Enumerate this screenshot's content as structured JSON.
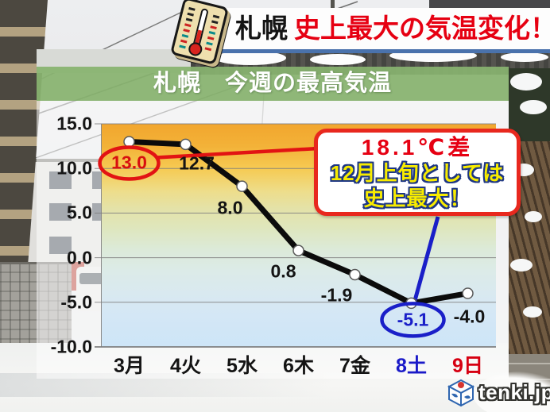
{
  "header": {
    "location": "札幌",
    "headline": "史上最大の気温変化！"
  },
  "chart": {
    "title": "札幌　今週の最高気温"
  },
  "chart_data": {
    "type": "line",
    "title": "札幌　今週の最高気温",
    "categories": [
      "3月",
      "4火",
      "5水",
      "6木",
      "7金",
      "8土",
      "9日"
    ],
    "values": [
      13.0,
      12.7,
      8.0,
      0.8,
      -1.9,
      -5.1,
      -4.0
    ],
    "point_labels": [
      "13.0",
      "12.7",
      "8.0",
      "0.8",
      "-1.9",
      "-5.1",
      "-4.0"
    ],
    "yticks": [
      "15.0",
      "10.0",
      "5.0",
      "0.0",
      "-5.0",
      "-10.0"
    ],
    "ylim": [
      -10,
      15
    ],
    "xlabel": "",
    "ylabel": "",
    "grid": true,
    "legend": false,
    "line_color": "#0b0b0b",
    "marker": "white-circle",
    "category_colors": [
      "#141414",
      "#141414",
      "#141414",
      "#141414",
      "#141414",
      "#1a1ac8",
      "#d60012"
    ],
    "plot_background_gradient": [
      "#f2a62e",
      "#f6ca52",
      "#eedd8a",
      "#dfe6bb",
      "#dcead8",
      "#d4e7f6",
      "#cde5f7"
    ],
    "annotations": {
      "max_circle": {
        "index": 0,
        "color": "#e21313"
      },
      "min_circle": {
        "index": 5,
        "color": "#1a1fc8"
      }
    }
  },
  "callout": {
    "line1": "18.1℃差",
    "line2": "12月上旬としては",
    "line3": "史上最大！"
  },
  "footer": {
    "logo_text": "tenki.jp"
  },
  "icons": {
    "thermometer": "thermometer-icon",
    "logo_cube": "tenki-cube-icon"
  },
  "colors": {
    "headline_red": "#e60012",
    "banner_underline": "#4a72ac",
    "title_green": "rgba(125,172,98,0.85)",
    "callout_border": "#e8281e",
    "callout_yellow": "#f8ec00",
    "callout_outline": "#1d3684",
    "annotation_red": "#e21313",
    "annotation_blue": "#1a1fc8"
  }
}
